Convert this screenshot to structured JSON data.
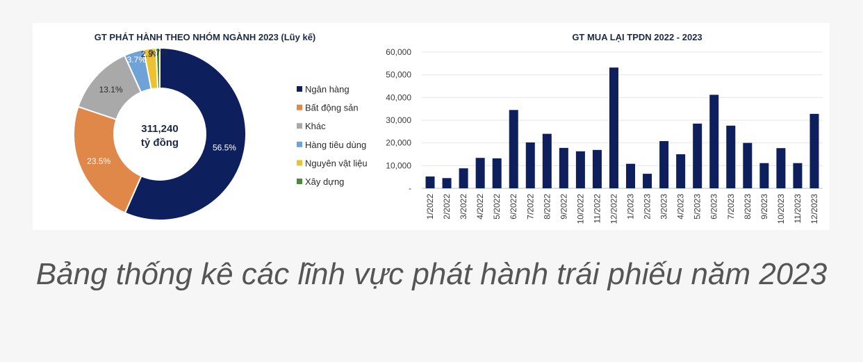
{
  "caption": "Bảng thống kê các lĩnh vực phát hành trái phiếu năm 2023",
  "chart_data": [
    {
      "type": "pie",
      "title": "GT PHÁT HÀNH THEO NHÓM NGÀNH 2023 (Lũy kế)",
      "center_value": "311,240",
      "center_unit": "tỷ đồng",
      "legend_placement": "right",
      "slices": [
        {
          "label": "Ngân hàng",
          "value": 56.5,
          "value_label": "56.5%",
          "color": "#0d1f5c"
        },
        {
          "label": "Bất động sản",
          "value": 23.5,
          "value_label": "23.5%",
          "color": "#e0874a"
        },
        {
          "label": "Khác",
          "value": 13.1,
          "value_label": "13.1%",
          "color": "#a9a9a9"
        },
        {
          "label": "Hàng tiêu dùng",
          "value": 3.7,
          "value_label": "3.7%",
          "color": "#6fa3d8"
        },
        {
          "label": "Nguyên vật liệu",
          "value": 2.3,
          "value_label": "2.3%",
          "color": "#ecc233"
        },
        {
          "label": "Xây dựng",
          "value": 0.7,
          "value_label": "0.7%",
          "color": "#4c8a3a"
        }
      ]
    },
    {
      "type": "bar",
      "title": "GT MUA LẠI TPDN 2022 - 2023",
      "categories": [
        "1/2022",
        "2/2022",
        "3/2022",
        "4/2022",
        "5/2022",
        "6/2022",
        "7/2022",
        "8/2022",
        "9/2022",
        "10/2022",
        "11/2022",
        "12/2022",
        "1/2023",
        "2/2023",
        "3/2023",
        "4/2023",
        "5/2023",
        "6/2023",
        "7/2023",
        "8/2023",
        "9/2023",
        "10/2023",
        "11/2023",
        "12/2023"
      ],
      "values": [
        5200,
        4500,
        8800,
        13400,
        13200,
        34500,
        20200,
        24000,
        17800,
        16300,
        16900,
        53200,
        10800,
        6400,
        20800,
        15000,
        28500,
        41200,
        27600,
        20000,
        11100,
        17700,
        11100,
        32800
      ],
      "ylim": [
        0,
        60000
      ],
      "yticks": [
        "-",
        "10,000",
        "20,000",
        "30,000",
        "40,000",
        "50,000",
        "60,000"
      ],
      "grid": true,
      "bar_color": "#0d1f5c"
    }
  ]
}
